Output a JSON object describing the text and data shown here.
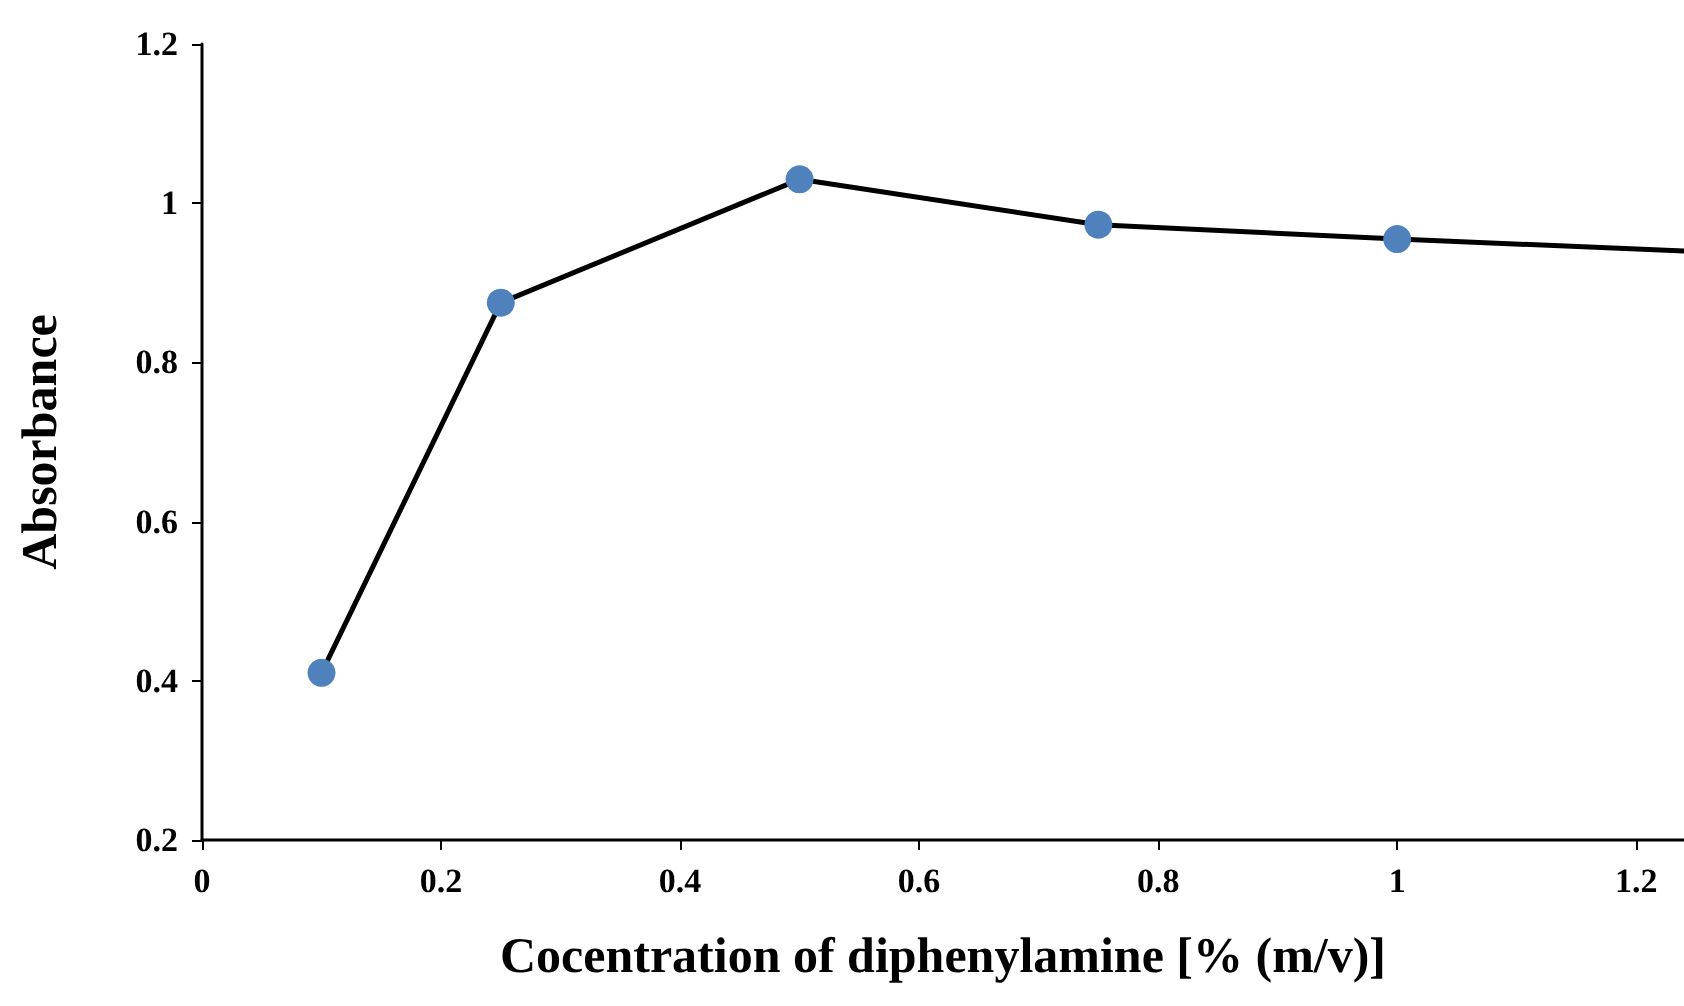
{
  "chart_data": {
    "type": "line",
    "xlabel": "Cocentration of diphenylamine [% (m/v)]",
    "ylabel": "Absorbance",
    "x": [
      0.1,
      0.25,
      0.5,
      0.75,
      1
    ],
    "series": [
      {
        "color": "#4f81bd",
        "values": [
          0.41,
          0.875,
          1.03,
          0.973,
          0.955
        ],
        "marker": "circle"
      },
      {
        "color": "#000000",
        "x": [
          1,
          1.24
        ],
        "values": [
          0.955,
          0.94
        ],
        "marker": "none"
      }
    ],
    "xlim": [
      0,
      1.24
    ],
    "xticks": [
      0,
      0.2,
      0.4,
      0.6,
      0.8,
      1,
      1.2
    ],
    "ylim": [
      0.2,
      1.2
    ],
    "yticks": [
      0.2,
      0.4,
      0.6,
      0.8,
      1,
      1.2
    ],
    "grid": false,
    "line_style": "solid"
  }
}
